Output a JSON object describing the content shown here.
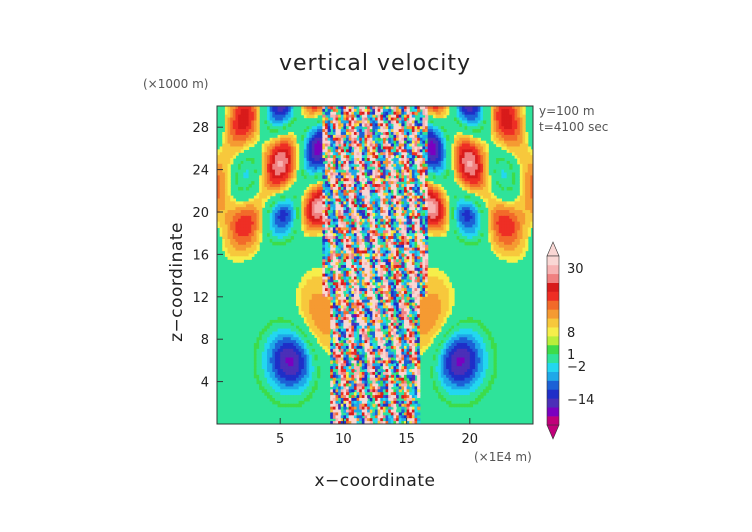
{
  "chart_data": {
    "type": "heatmap",
    "title": "vertical velocity",
    "xlabel": "x−coordinate",
    "ylabel": "z−coordinate",
    "x_unit": "(×1E4 m)",
    "y_unit": "(×1000 m)",
    "annotations": [
      "y=100 m",
      "t=4100 sec"
    ],
    "xlim": [
      0,
      25
    ],
    "ylim": [
      0,
      30
    ],
    "xticks": [
      5,
      10,
      15,
      20
    ],
    "yticks": [
      4,
      8,
      12,
      16,
      20,
      24,
      28
    ],
    "colorbar": {
      "tick_labels": [
        "30",
        "8",
        "1",
        "−2",
        "−14"
      ],
      "tick_values": [
        30,
        8,
        1,
        -2,
        -14
      ],
      "colors": [
        "#c0007a",
        "#7a00c0",
        "#4b2fb8",
        "#1f2fc8",
        "#1c61d6",
        "#1fa8e8",
        "#23d7f0",
        "#2fe39a",
        "#3ddc4a",
        "#b9ee3b",
        "#f6ee4a",
        "#f7c83c",
        "#f59a32",
        "#f26a2a",
        "#ee2e25",
        "#d81b1b",
        "#f08080",
        "#f7b3b3",
        "#f9d7d4"
      ],
      "extend": "both"
    },
    "background_value_color": "#2fe39a",
    "pattern": "Wave field symmetric about x≈12.5: a noisy turbulent column (x≈9–16) over the full height with alternating positive/negative vertical velocity cells, negative lobes (blue) near z≈4–8 at x≈6 and x≈19, and alternating warm/cold bands in the upper half (z≈16–30)."
  }
}
